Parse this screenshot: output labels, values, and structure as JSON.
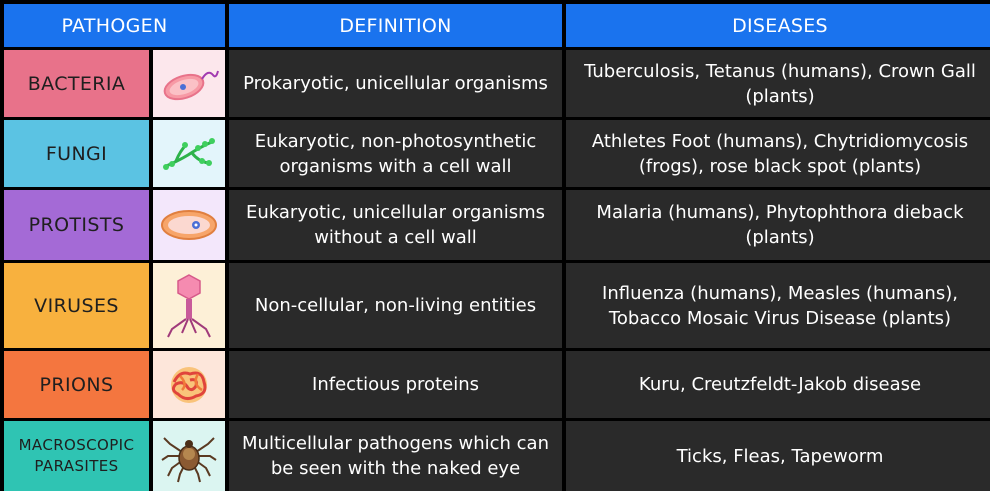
{
  "headers": {
    "pathogen": "PATHOGEN",
    "definition": "DEFINITION",
    "diseases": "DISEASES"
  },
  "rows": [
    {
      "name": "BACTERIA",
      "icon": "bacteria-icon",
      "name_color": "#e8728a",
      "icon_bg": "#fce7ec",
      "definition": "Prokaryotic, unicellular organisms",
      "diseases": "Tuberculosis, Tetanus (humans), Crown Gall (plants)"
    },
    {
      "name": "FUNGI",
      "icon": "fungi-icon",
      "name_color": "#5bc3e3",
      "icon_bg": "#e3f5fb",
      "definition": "Eukaryotic, non-photosynthetic organisms with a cell wall",
      "diseases": "Athletes Foot (humans), Chytridiomycosis (frogs), rose black spot (plants)"
    },
    {
      "name": "PROTISTS",
      "icon": "protist-icon",
      "name_color": "#a46ad6",
      "icon_bg": "#f3e7fb",
      "definition": "Eukaryotic, unicellular organisms without a cell wall",
      "diseases": "Malaria (humans), Phytophthora dieback (plants)"
    },
    {
      "name": "VIRUSES",
      "icon": "virus-icon",
      "name_color": "#f8b13e",
      "icon_bg": "#fdf0d7",
      "definition": "Non-cellular, non-living entities",
      "diseases": "Influenza (humans), Measles (humans), Tobacco Mosaic Virus Disease (plants)"
    },
    {
      "name": "PRIONS",
      "icon": "prion-icon",
      "name_color": "#f4763f",
      "icon_bg": "#fde6da",
      "definition": "Infectious proteins",
      "diseases": "Kuru, Creutzfeldt-Jakob disease"
    },
    {
      "name": "MACROSCOPIC PARASITES",
      "icon": "tick-icon",
      "name_color": "#2fc4b3",
      "icon_bg": "#dbf5f1",
      "definition": "Multicellular pathogens which can be seen with the naked eye",
      "diseases": "Ticks, Fleas, Tapeworm"
    }
  ]
}
